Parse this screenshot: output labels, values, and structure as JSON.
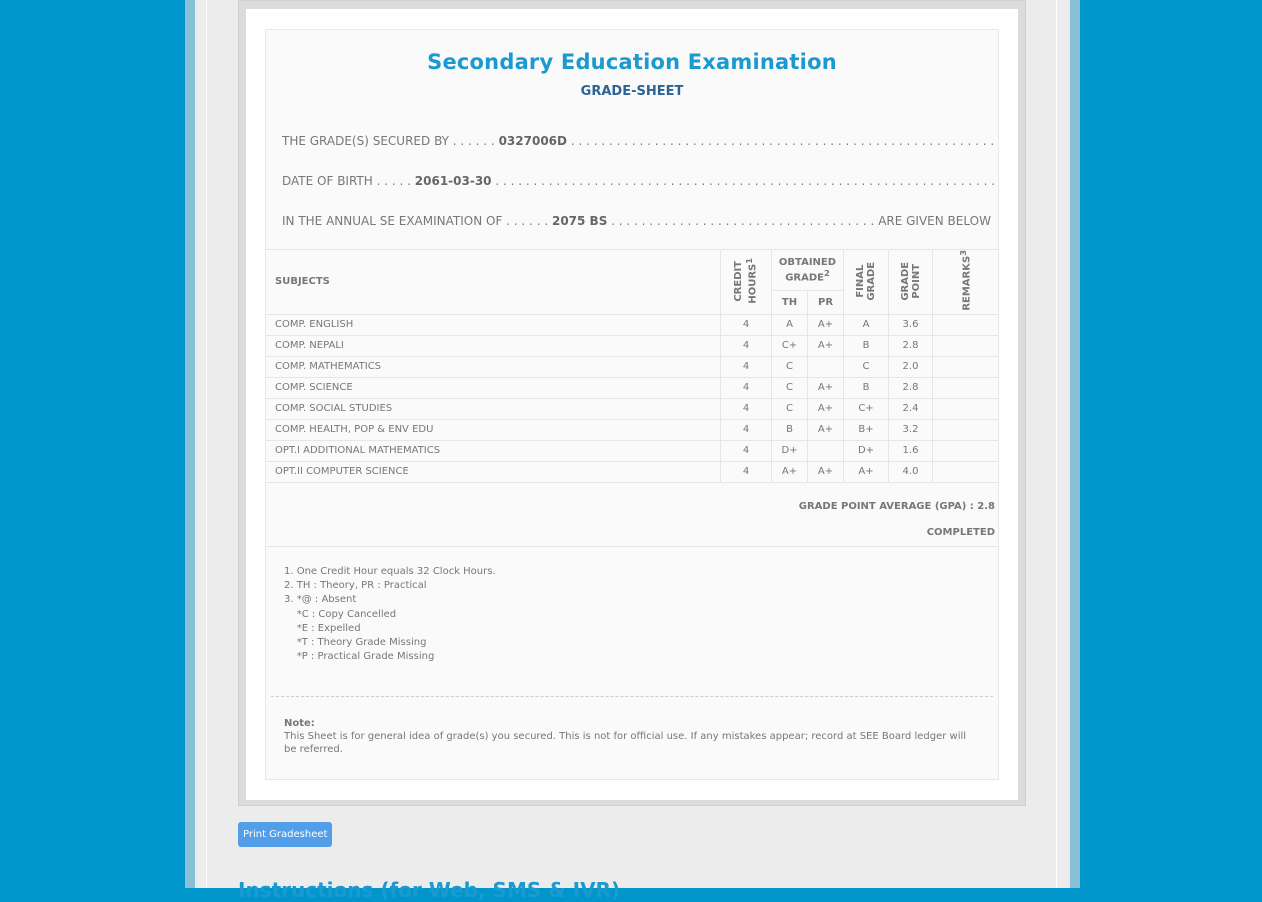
{
  "header": {
    "title": "Secondary Education Examination",
    "subtitle": "GRADE-SHEET"
  },
  "student": {
    "secured_by_label": "THE GRADE(S) SECURED BY . . . . . .",
    "symbol": "0327006D",
    "dots": " . . . . . . . . . . . . . . . . . . . . . . . . . . . . . . . . . . . . . . . . . . . . . . . . . . . . . . . . . . . . . . . . . . . . . .",
    "dob_label": "DATE OF BIRTH . . . . .",
    "dob": "2061-03-30",
    "exam_label": "IN THE ANNUAL SE EXAMINATION OF . . . . . .",
    "exam_year": "2075 BS",
    "exam_dots": " . . . . . . . . . . . . . . . . . . . . . . . . . . . . . . . . . . .",
    "given_below": "ARE GIVEN BELOW"
  },
  "table": {
    "headers": {
      "subjects": "SUBJECTS",
      "credit_hours": "CREDIT HOURS",
      "ch_sup": "1",
      "obtained": "OBTAINED GRADE",
      "ob_sup": "2",
      "th": "TH",
      "pr": "PR",
      "final": "FINAL GRADE",
      "gp": "GRADE POINT",
      "remarks": "REMARKS",
      "rem_sup": "3"
    },
    "rows": [
      {
        "subject": "COMP. ENGLISH",
        "ch": "4",
        "th": "A",
        "pr": "A+",
        "final": "A",
        "gp": "3.6",
        "remarks": ""
      },
      {
        "subject": "COMP. NEPALI",
        "ch": "4",
        "th": "C+",
        "pr": "A+",
        "final": "B",
        "gp": "2.8",
        "remarks": ""
      },
      {
        "subject": "COMP. MATHEMATICS",
        "ch": "4",
        "th": "C",
        "pr": "",
        "final": "C",
        "gp": "2.0",
        "remarks": ""
      },
      {
        "subject": "COMP. SCIENCE",
        "ch": "4",
        "th": "C",
        "pr": "A+",
        "final": "B",
        "gp": "2.8",
        "remarks": ""
      },
      {
        "subject": "COMP. SOCIAL STUDIES",
        "ch": "4",
        "th": "C",
        "pr": "A+",
        "final": "C+",
        "gp": "2.4",
        "remarks": ""
      },
      {
        "subject": "COMP. HEALTH, POP & ENV EDU",
        "ch": "4",
        "th": "B",
        "pr": "A+",
        "final": "B+",
        "gp": "3.2",
        "remarks": ""
      },
      {
        "subject": "OPT.I ADDITIONAL MATHEMATICS",
        "ch": "4",
        "th": "D+",
        "pr": "",
        "final": "D+",
        "gp": "1.6",
        "remarks": ""
      },
      {
        "subject": "OPT.II COMPUTER SCIENCE",
        "ch": "4",
        "th": "A+",
        "pr": "A+",
        "final": "A+",
        "gp": "4.0",
        "remarks": ""
      }
    ]
  },
  "summary": {
    "gpa": "GRADE POINT AVERAGE (GPA) : 2.8",
    "status": "COMPLETED"
  },
  "legend": [
    "1. One Credit Hour equals 32 Clock Hours.",
    "2. TH : Theory, PR : Practical",
    "3. *@ : Absent",
    "    *C : Copy Cancelled",
    "    *E : Expelled",
    "    *T : Theory Grade Missing",
    "    *P : Practical Grade Missing"
  ],
  "note": {
    "label": "Note:",
    "text": "This Sheet is for general idea of grade(s) you secured. This is not for official use. If any mistakes appear; record at SEE Board ledger will be referred."
  },
  "print_button": "Print Gradesheet",
  "instructions_heading": "Instructions (for Web, SMS & IVR)"
}
